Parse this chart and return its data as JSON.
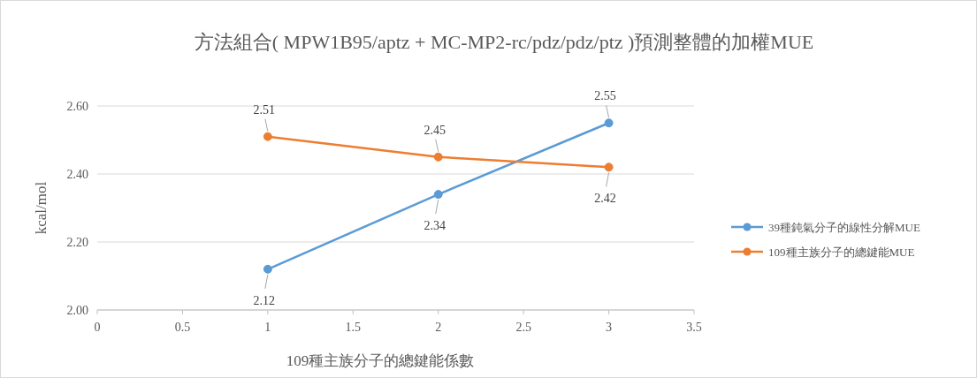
{
  "chart_data": {
    "type": "line",
    "title": "方法組合( MPW1B95/aptz + MC-MP2-rc/pdz/pdz/ptz )預測整體的加權MUE",
    "xlabel": "109種主族分子的總鍵能係數",
    "ylabel": "kcal/mol",
    "x": [
      1,
      2,
      3
    ],
    "series": [
      {
        "name": "39種鈍氣分子的線性分解MUE",
        "color": "#5b9bd5",
        "values": [
          2.12,
          2.34,
          2.55
        ]
      },
      {
        "name": "109種主族分子的總鍵能MUE",
        "color": "#ed7d31",
        "values": [
          2.51,
          2.45,
          2.42
        ]
      }
    ],
    "xlim": [
      0,
      3.5
    ],
    "xticks": [
      0,
      0.5,
      1,
      1.5,
      2,
      2.5,
      3,
      3.5
    ],
    "ylim": [
      2.0,
      2.6
    ],
    "yticks": [
      {
        "value": 2.0,
        "label": "2.00"
      },
      {
        "value": 2.2,
        "label": "2.20"
      },
      {
        "value": 2.4,
        "label": "2.40"
      },
      {
        "value": 2.6,
        "label": "2.60"
      }
    ],
    "grid": "y",
    "legend": "right",
    "marker": "circle",
    "line_style": "solid",
    "data_labels": true
  }
}
